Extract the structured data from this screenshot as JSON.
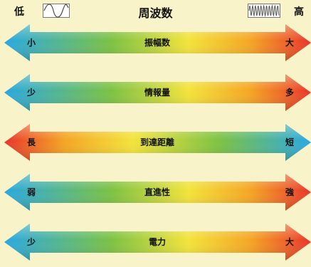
{
  "header": {
    "low_label": "低",
    "title": "周波数",
    "high_label": "高",
    "low_wave_icon": "sine-wave-low-frequency-icon",
    "high_wave_icon": "sine-wave-high-frequency-icon"
  },
  "colors": {
    "background": "#f8f3c8",
    "blue": "#29a8e0",
    "green": "#7cc242",
    "yellow": "#f3e33a",
    "orange": "#f5a623",
    "red": "#e8352a"
  },
  "arrows": [
    {
      "name": "振幅数",
      "left": "小",
      "right": "大",
      "direction": "blue-to-red"
    },
    {
      "name": "情報量",
      "left": "少",
      "right": "多",
      "direction": "blue-to-red"
    },
    {
      "name": "到達距離",
      "left": "長",
      "right": "短",
      "direction": "red-to-blue"
    },
    {
      "name": "直進性",
      "left": "弱",
      "right": "強",
      "direction": "blue-to-red"
    },
    {
      "name": "電力",
      "left": "少",
      "right": "大",
      "direction": "blue-to-red"
    }
  ]
}
